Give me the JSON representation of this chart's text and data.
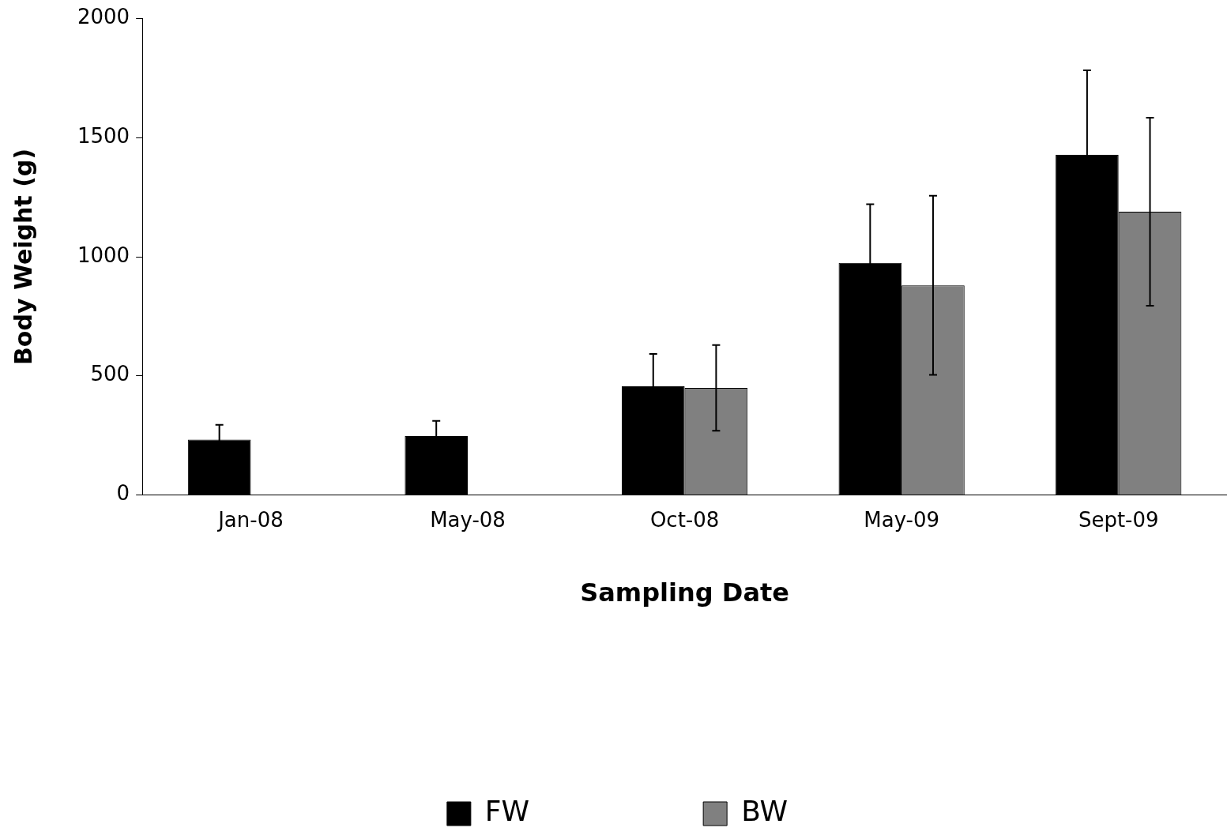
{
  "chart_data": {
    "type": "bar",
    "xlabel": "Sampling Date",
    "ylabel": "Body Weight (g)",
    "categories": [
      "Jan-08",
      "May-08",
      "Oct-08",
      "May-09",
      "Sept-09"
    ],
    "series": [
      {
        "name": "FW",
        "color": "#000000",
        "values": [
          232,
          247,
          456,
          974,
          1428
        ],
        "errors": [
          62,
          64,
          136,
          247,
          355
        ]
      },
      {
        "name": "BW",
        "color": "#808080",
        "values": [
          0,
          0,
          449,
          880,
          1189
        ],
        "errors": [
          null,
          null,
          180,
          376,
          395
        ]
      }
    ],
    "ylim": [
      0,
      2000
    ],
    "yticks": [
      0,
      500,
      1000,
      1500,
      2000
    ],
    "grid": false,
    "legend": "bottom"
  }
}
